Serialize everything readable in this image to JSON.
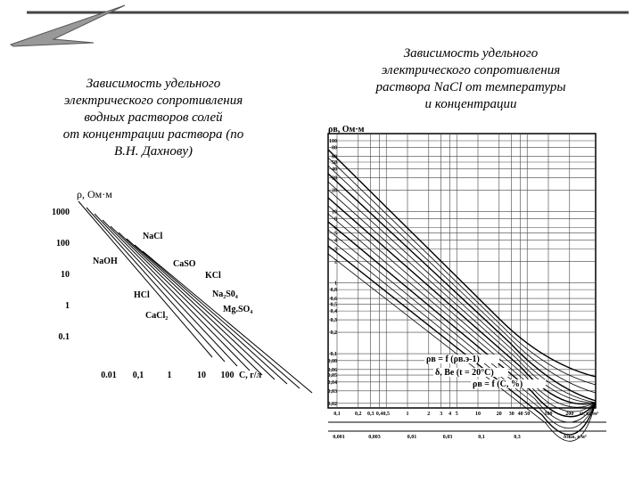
{
  "left": {
    "title_lines": [
      "Зависимость удельного",
      "электрического сопротивления",
      "водных растворов солей",
      "от концентрации раствора (по",
      "В.Н. Дахнову)"
    ],
    "figure": {
      "y_label": "ρ, Ом·м",
      "yticks": [
        "1000",
        "100",
        "10",
        "1",
        "0.1"
      ],
      "xticks": [
        "0.01",
        "0,1",
        "1",
        "10",
        "100"
      ],
      "x_label": "С, г/л",
      "curve_labels": [
        "NaCl",
        "NaOH",
        "CaSO",
        "KCl",
        "HCl",
        "Na₂S0₄",
        "Mg.SO₄",
        "CaCl₂"
      ]
    }
  },
  "right": {
    "title_lines": [
      "Зависимость удельного",
      "электрического сопротивления",
      "раствора NaCl от температуры",
      "и концентрации"
    ],
    "figure": {
      "y_label": "ρв, Ом·м",
      "yticks": [
        "100",
        "80",
        "60",
        "50",
        "40",
        "30",
        "20",
        "10",
        "8",
        "6",
        "5",
        "4",
        "3",
        "2",
        "1",
        "0,8",
        "0,6",
        "0,5",
        "0,4",
        "0,3",
        "0,2",
        "0,1",
        "0,08",
        "0,06",
        "0,05",
        "0,04",
        "0,03",
        "0,02"
      ],
      "xticks": [
        "0,1",
        "0,2",
        "0,3",
        "0,4",
        "0,5",
        "1",
        "2",
        "3",
        "4",
        "5",
        "10",
        "20",
        "30",
        "40",
        "50",
        "100",
        "200"
      ],
      "x_label": "С, кг/м³",
      "xticks_bottom": [
        "0,001",
        "0,003",
        "0,01",
        "0,03",
        "0,1",
        "0,3"
      ],
      "x_label_bottom": "δэкв, г/м³",
      "formulas": [
        "ρв = f (ρв.э-1)",
        "δ, Вe (t = 20°C)",
        "ρв = f (C, %)"
      ]
    }
  }
}
